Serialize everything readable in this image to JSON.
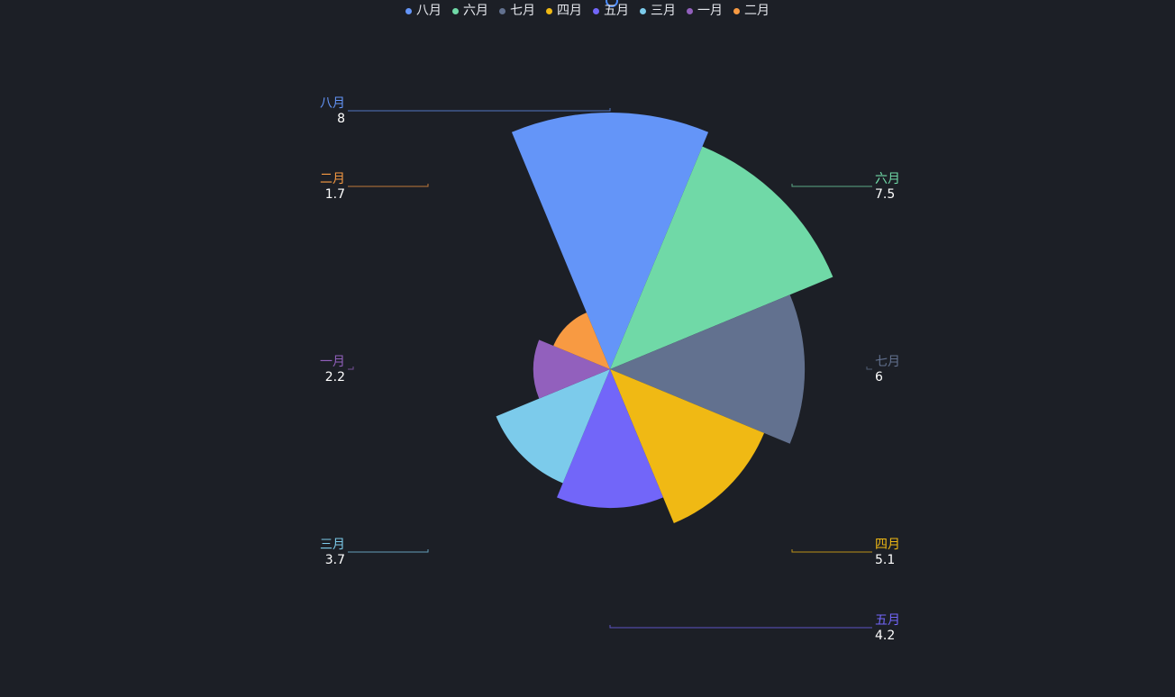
{
  "chart_data": {
    "type": "pie",
    "variant": "nightingale-rose",
    "categories": [
      "八月",
      "六月",
      "七月",
      "四月",
      "五月",
      "三月",
      "一月",
      "二月"
    ],
    "values": [
      8,
      7.5,
      6,
      5.1,
      4.2,
      3.7,
      2.2,
      1.7
    ],
    "colors": [
      "#6495f8",
      "#70d9a7",
      "#62718f",
      "#f0b914",
      "#7266f9",
      "#7ccbeb",
      "#9260bd",
      "#f89a42"
    ],
    "legend_position": "top-center"
  }
}
